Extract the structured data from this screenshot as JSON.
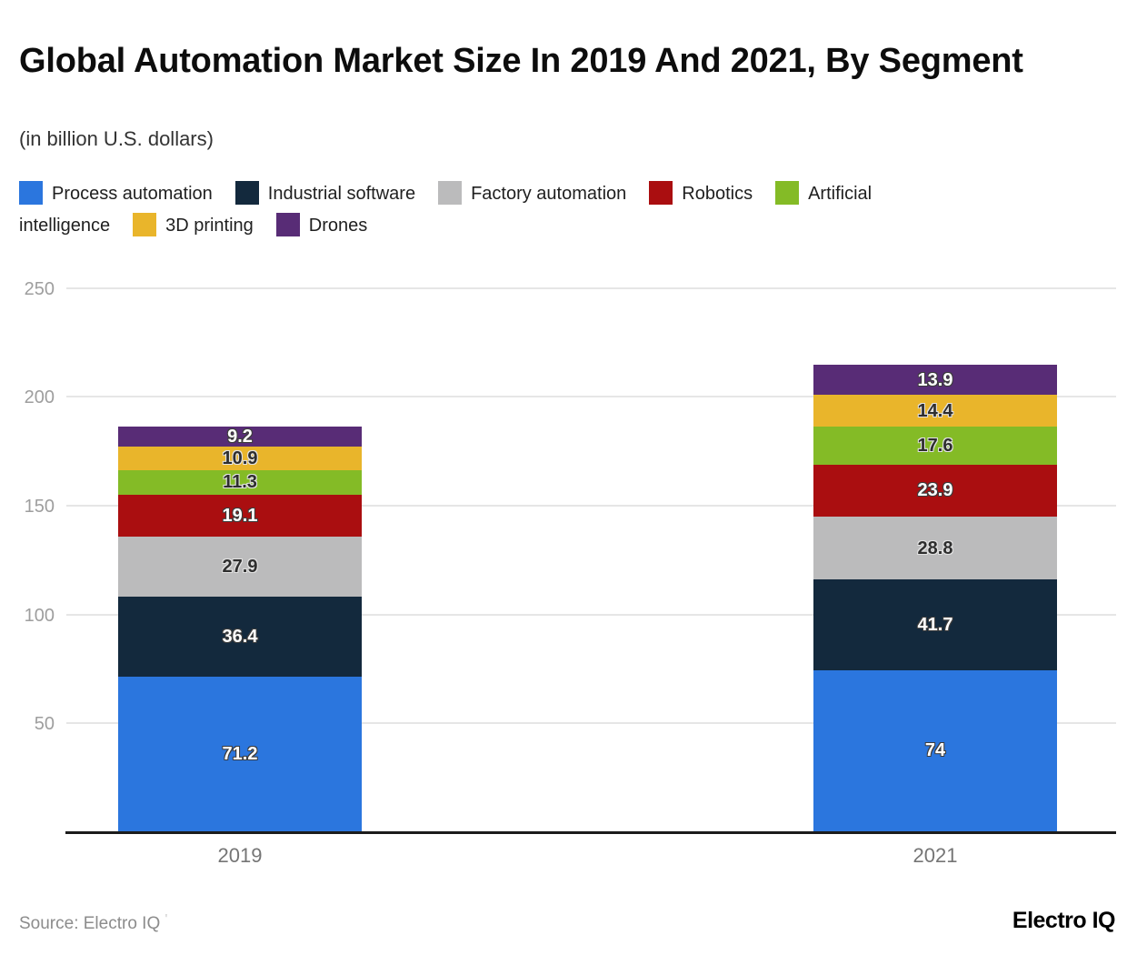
{
  "header": {
    "title": "Global Automation Market Size In 2019 And 2021, By Segment",
    "subtitle": "(in billion U.S. dollars)"
  },
  "chart_data": {
    "type": "bar",
    "stacked": true,
    "title": "Global Automation Market Size In 2019 And 2021, By Segment",
    "unit": "billion U.S. dollars",
    "categories": [
      "2019",
      "2021"
    ],
    "series": [
      {
        "name": "Process automation",
        "color": "#2b76de",
        "label_style": "light",
        "values": [
          71.2,
          74
        ]
      },
      {
        "name": "Industrial software",
        "color": "#13293d",
        "label_style": "light",
        "values": [
          36.4,
          41.7
        ]
      },
      {
        "name": "Factory automation",
        "color": "#bbbbbc",
        "label_style": "dark",
        "values": [
          27.9,
          28.8
        ]
      },
      {
        "name": "Robotics",
        "color": "#aa0e10",
        "label_style": "light",
        "values": [
          19.1,
          23.9
        ]
      },
      {
        "name": "Artificial intelligence",
        "color": "#84bb26",
        "label_style": "dark",
        "values": [
          11.3,
          17.6
        ]
      },
      {
        "name": "3D printing",
        "color": "#e9b52b",
        "label_style": "dark",
        "values": [
          10.9,
          14.4
        ]
      },
      {
        "name": "Drones",
        "color": "#582c76",
        "label_style": "light",
        "values": [
          9.2,
          13.9
        ]
      }
    ],
    "y_ticks": [
      50,
      100,
      150,
      200,
      250
    ],
    "ylim": [
      0,
      257
    ],
    "grid": true,
    "legend_position": "top",
    "axis_colors": {
      "gridline": "#e6e6e6",
      "axis_line": "#1c1c1c",
      "tick_label": "#9e9e9e",
      "category_label": "#757575"
    }
  },
  "footer": {
    "source": "Source: Electro IQ",
    "source_mark": "'",
    "brand": "Electro IQ"
  }
}
